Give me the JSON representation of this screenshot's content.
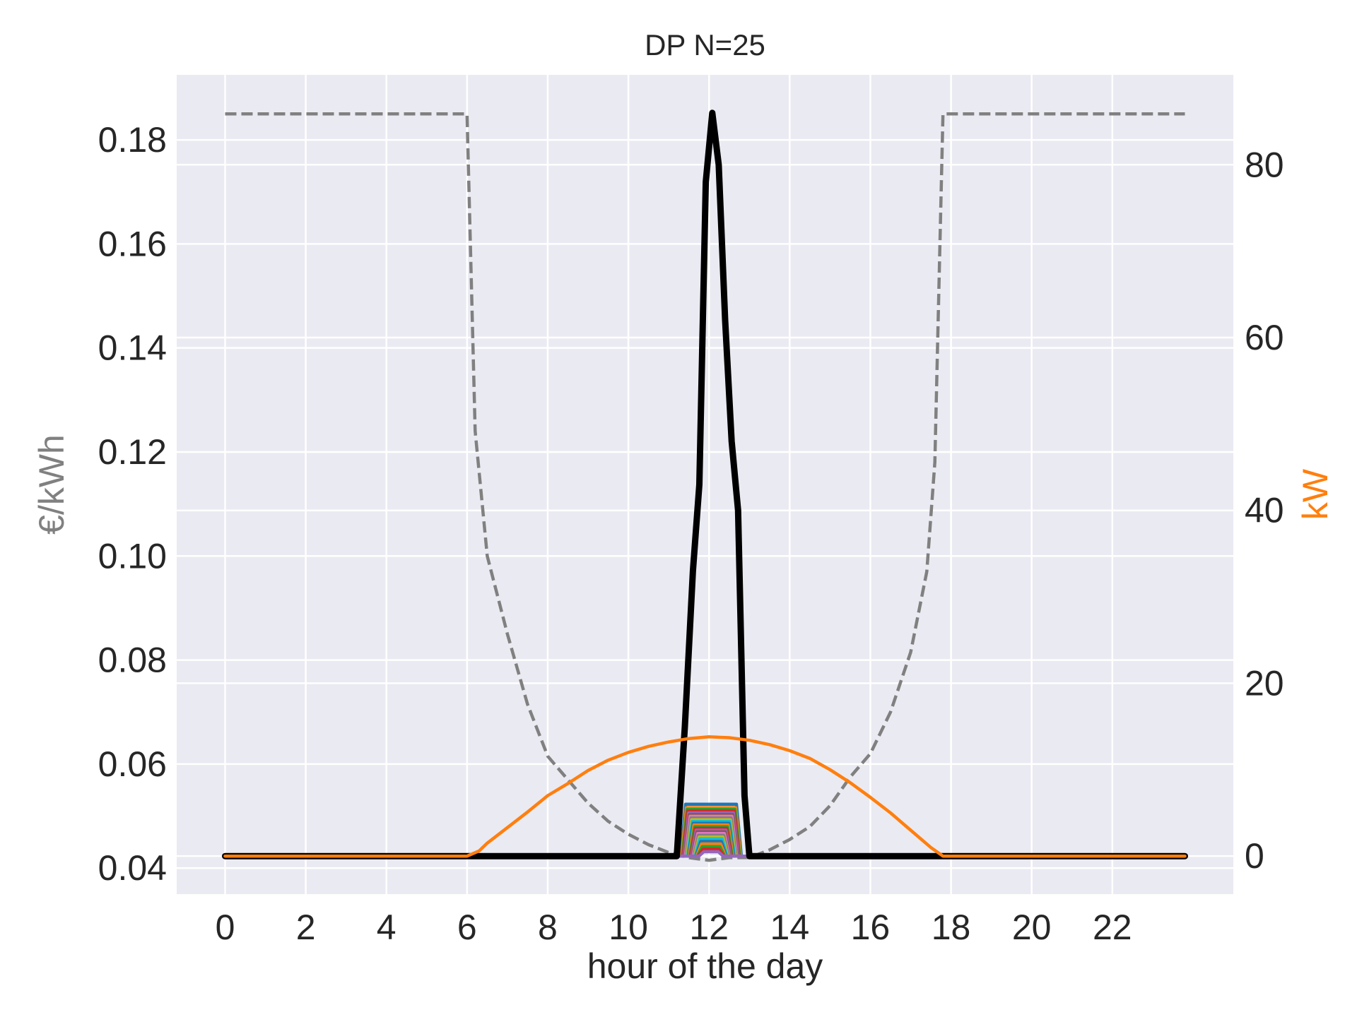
{
  "chart_data": {
    "type": "line",
    "title": "DP N=25",
    "xlabel": "hour of the day",
    "ylabel_left": "€/kWh",
    "ylabel_right": "kW",
    "xlim": [
      -1.2,
      25.0
    ],
    "ylim_left": [
      0.035,
      0.1925
    ],
    "ylim_right": [
      -4.4,
      90.4
    ],
    "x_ticks": [
      "0",
      "2",
      "4",
      "6",
      "8",
      "10",
      "12",
      "14",
      "16",
      "18",
      "20",
      "22"
    ],
    "y_ticks_left": [
      "0.04",
      "0.06",
      "0.08",
      "0.10",
      "0.12",
      "0.14",
      "0.16",
      "0.18"
    ],
    "y_ticks_right": [
      "0",
      "20",
      "40",
      "60",
      "80"
    ],
    "grid": true,
    "colors": {
      "background": "#eaeaf2",
      "grid": "#ffffff",
      "price": "#808080",
      "pv": "#ff7f0e",
      "aggregate": "#000000",
      "axis_label_left": "#808080",
      "axis_label_right": "#ff7f0e",
      "ev_palette": [
        "#1f77b4",
        "#ff7f0e",
        "#2ca02c",
        "#d62728",
        "#9467bd",
        "#8c564b",
        "#e377c2",
        "#7f7f7f",
        "#bcbd22",
        "#17becf"
      ]
    },
    "series": [
      {
        "axis": "left",
        "style": "dashed",
        "points": [
          [
            0,
            0.185
          ],
          [
            6,
            0.185
          ],
          [
            6.2,
            0.124
          ],
          [
            6.5,
            0.1
          ],
          [
            7,
            0.085
          ],
          [
            7.5,
            0.0715
          ],
          [
            8,
            0.0615
          ],
          [
            8.5,
            0.057
          ],
          [
            9,
            0.0525
          ],
          [
            9.5,
            0.049
          ],
          [
            10,
            0.0465
          ],
          [
            10.5,
            0.0445
          ],
          [
            11,
            0.043
          ],
          [
            11.5,
            0.042
          ],
          [
            12,
            0.0415
          ],
          [
            12.5,
            0.042
          ],
          [
            13,
            0.042
          ],
          [
            13.5,
            0.0435
          ],
          [
            14,
            0.0455
          ],
          [
            14.5,
            0.048
          ],
          [
            15,
            0.052
          ],
          [
            15.5,
            0.0575
          ],
          [
            16,
            0.062
          ],
          [
            16.5,
            0.07
          ],
          [
            17,
            0.0815
          ],
          [
            17.4,
            0.097
          ],
          [
            17.6,
            0.118
          ],
          [
            17.8,
            0.185
          ],
          [
            23.8,
            0.185
          ]
        ]
      },
      {
        "axis": "right",
        "style": "solid",
        "points": [
          [
            0,
            0
          ],
          [
            6,
            0
          ],
          [
            6.3,
            0.6
          ],
          [
            6.5,
            1.5
          ],
          [
            7,
            3.3
          ],
          [
            7.5,
            5.1
          ],
          [
            8,
            7
          ],
          [
            8.5,
            8.4
          ],
          [
            9,
            9.9
          ],
          [
            9.5,
            11.1
          ],
          [
            10,
            12
          ],
          [
            10.5,
            12.7
          ],
          [
            11,
            13.2
          ],
          [
            11.5,
            13.6
          ],
          [
            12,
            13.8
          ],
          [
            12.5,
            13.7
          ],
          [
            13,
            13.4
          ],
          [
            13.5,
            12.9
          ],
          [
            14,
            12.2
          ],
          [
            14.5,
            11.3
          ],
          [
            15,
            10
          ],
          [
            15.5,
            8.5
          ],
          [
            16,
            6.8
          ],
          [
            16.5,
            5
          ],
          [
            17,
            3
          ],
          [
            17.5,
            1
          ],
          [
            17.8,
            0
          ],
          [
            23.8,
            0
          ]
        ]
      },
      {
        "axis": "right",
        "style": "solid",
        "points": [
          [
            0,
            0
          ],
          [
            11.2,
            0
          ],
          [
            11.4,
            15
          ],
          [
            11.6,
            33
          ],
          [
            11.76,
            43
          ],
          [
            11.92,
            78
          ],
          [
            12.08,
            86
          ],
          [
            12.24,
            80
          ],
          [
            12.4,
            62
          ],
          [
            12.56,
            48
          ],
          [
            12.72,
            40
          ],
          [
            12.88,
            7
          ],
          [
            13,
            0
          ],
          [
            17.8,
            0
          ],
          [
            23.8,
            0
          ]
        ]
      },
      {
        "axis": "right",
        "style": "solid",
        "group": "ev_profiles",
        "count": 25,
        "peak_values": [
          6,
          5.6,
          5.4,
          5.2,
          5,
          4.8,
          4.6,
          4.4,
          4.2,
          4,
          3.8,
          3.6,
          3.4,
          3.2,
          3,
          2.8,
          2.6,
          2.4,
          2.2,
          2,
          1.7,
          1.4,
          1.1,
          0.8,
          0.5
        ],
        "window": [
          11.3,
          12.8
        ]
      }
    ]
  }
}
